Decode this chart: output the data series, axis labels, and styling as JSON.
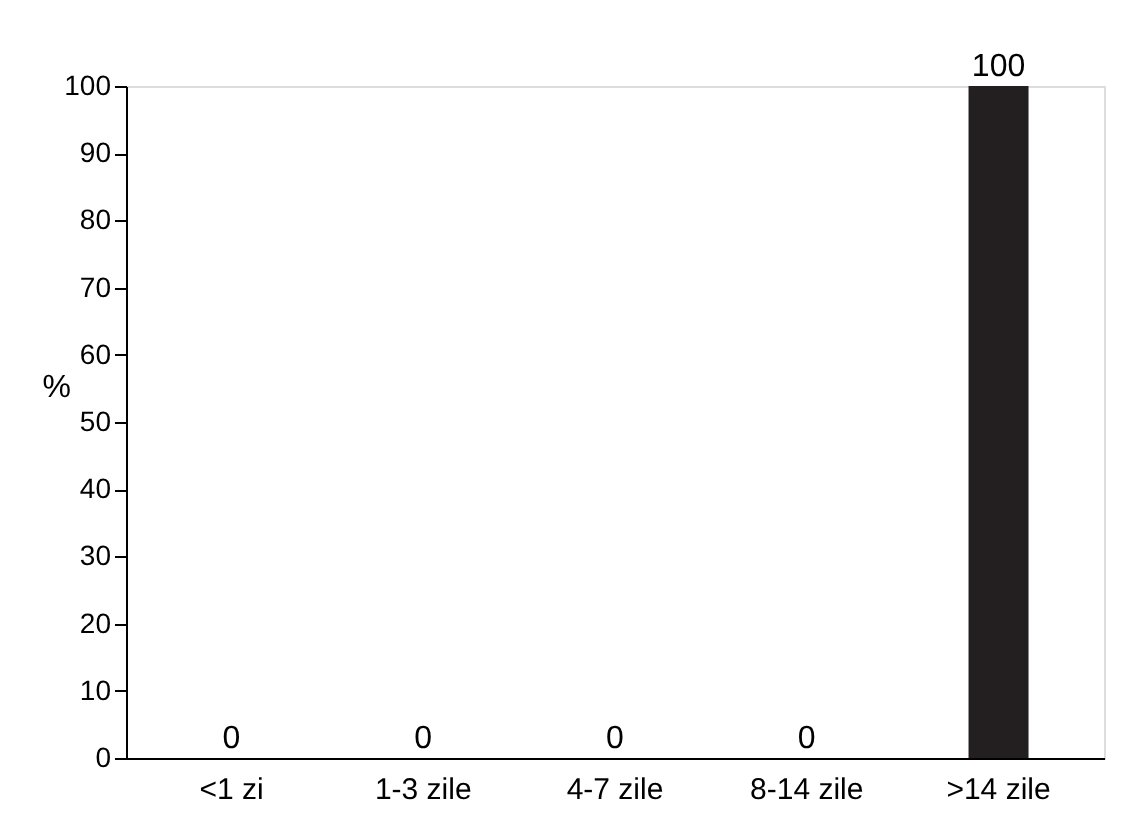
{
  "chart_data": {
    "type": "bar",
    "ylabel": "%",
    "categories": [
      "<1 zi",
      "1-3 zile",
      "4-7 zile",
      "8-14 zile",
      ">14 zile"
    ],
    "values": [
      0,
      0,
      0,
      0,
      100
    ],
    "color": "#231f20",
    "ylim": [
      0,
      100
    ],
    "yticks": [
      0,
      10,
      20,
      30,
      40,
      50,
      60,
      70,
      80,
      90,
      100
    ],
    "data_labels": true,
    "grid": false
  }
}
